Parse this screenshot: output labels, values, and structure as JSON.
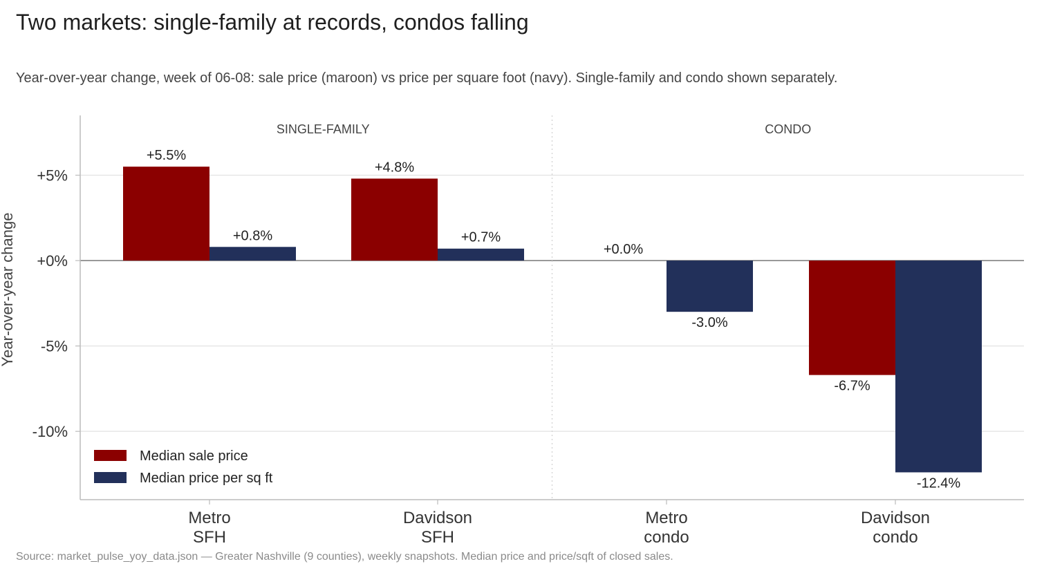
{
  "title": "Two markets: single-family at records, condos falling",
  "subtitle": "Year-over-year change, week of 06-08: sale price (maroon) vs price per square foot (navy). Single-family and condo shown separately.",
  "source": "Source: market_pulse_yoy_data.json — Greater Nashville (9 counties), weekly snapshots. Median price and price/sqft of closed sales.",
  "chart_data": {
    "type": "bar",
    "ylabel": "Year-over-year change",
    "ylim": [
      -14.0,
      8.5
    ],
    "yticks": [
      5,
      0,
      -5,
      -10
    ],
    "ytick_labels": [
      "+5%",
      "+0%",
      "-5%",
      "-10%"
    ],
    "grid": true,
    "panels": [
      "SINGLE-FAMILY",
      "CONDO"
    ],
    "categories": [
      [
        "Metro",
        "SFH"
      ],
      [
        "Davidson",
        "SFH"
      ],
      [
        "Metro",
        "condo"
      ],
      [
        "Davidson",
        "condo"
      ]
    ],
    "legend_position": "bottom-left",
    "series": [
      {
        "name": "Median sale price",
        "color": "#8b0000",
        "values": [
          5.5,
          4.8,
          0.0,
          -6.7
        ],
        "labels": [
          "+5.5%",
          "+4.8%",
          "+0.0%",
          "-6.7%"
        ]
      },
      {
        "name": "Median price per sq ft",
        "color": "#22305a",
        "values": [
          0.8,
          0.7,
          -3.0,
          -12.4
        ],
        "labels": [
          "+0.8%",
          "+0.7%",
          "-3.0%",
          "-12.4%"
        ]
      }
    ]
  }
}
